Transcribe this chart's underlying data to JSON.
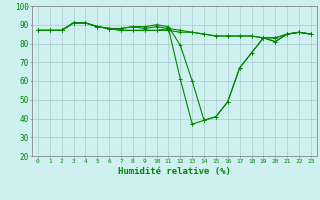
{
  "title": "",
  "xlabel": "Humidité relative (%)",
  "ylabel": "",
  "xlim": [
    -0.5,
    23.5
  ],
  "ylim": [
    20,
    100
  ],
  "xticks": [
    0,
    1,
    2,
    3,
    4,
    5,
    6,
    7,
    8,
    9,
    10,
    11,
    12,
    13,
    14,
    15,
    16,
    17,
    18,
    19,
    20,
    21,
    22,
    23
  ],
  "yticks": [
    20,
    30,
    40,
    50,
    60,
    70,
    80,
    90,
    100
  ],
  "bg_color": "#cff0f0",
  "grid_color": "#aacccc",
  "line_color": "#008800",
  "lines": [
    [
      87,
      87,
      87,
      91,
      91,
      89,
      88,
      88,
      89,
      88,
      89,
      88,
      61,
      37,
      39,
      41,
      49,
      67,
      75,
      83,
      81,
      85,
      86,
      85
    ],
    [
      87,
      87,
      87,
      91,
      91,
      89,
      88,
      88,
      89,
      89,
      90,
      89,
      79,
      60,
      39,
      41,
      49,
      67,
      75,
      83,
      81,
      85,
      86,
      85
    ],
    [
      87,
      87,
      87,
      91,
      91,
      89,
      88,
      87,
      87,
      87,
      87,
      87,
      86,
      86,
      85,
      84,
      84,
      84,
      84,
      83,
      83,
      85,
      86,
      85
    ],
    [
      87,
      87,
      87,
      91,
      91,
      89,
      88,
      87,
      87,
      87,
      87,
      88,
      87,
      86,
      85,
      84,
      84,
      84,
      84,
      83,
      83,
      85,
      86,
      85
    ]
  ]
}
